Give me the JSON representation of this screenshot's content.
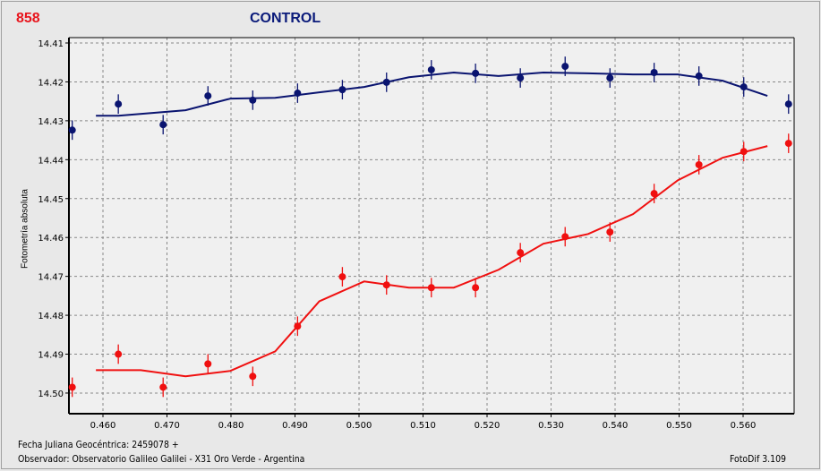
{
  "header": {
    "id_label": "858",
    "title": "CONTROL"
  },
  "footer": {
    "date_label": "Fecha Juliana Geocéntrica: 2459078 +",
    "observer": "Observador: Observatorio Galileo Galilei - X31 Oro Verde - Argentina",
    "software": "FotoDif 3.109"
  },
  "chart_data": {
    "type": "scatter",
    "title": "CONTROL",
    "xlabel": "Fecha Juliana Geocéntrica: 2459078 +",
    "ylabel": "Fotometría absoluta",
    "xlim": [
      0.4547,
      0.568
    ],
    "ylim": [
      14.41,
      14.505
    ],
    "y_inverted": true,
    "grid": true,
    "xticks": [
      "0.460",
      "0.470",
      "0.480",
      "0.490",
      "0.500",
      "0.510",
      "0.520",
      "0.530",
      "0.540",
      "0.550",
      "0.560"
    ],
    "yticks": [
      "14.41",
      "14.42",
      "14.43",
      "14.44",
      "14.45",
      "14.46",
      "14.47",
      "14.48",
      "14.49",
      "14.50"
    ],
    "error": 0.0025,
    "series": [
      {
        "color": "#0a1470",
        "x": [
          0.4552,
          0.4624,
          0.4694,
          0.4764,
          0.4834,
          0.4904,
          0.4974,
          0.5043,
          0.5113,
          0.5182,
          0.5252,
          0.5322,
          0.5392,
          0.5461,
          0.5531,
          0.5601,
          0.5671
        ],
        "y": [
          14.4324,
          14.4257,
          14.431,
          14.4236,
          14.4247,
          14.4229,
          14.422,
          14.4201,
          14.4169,
          14.4178,
          14.419,
          14.416,
          14.419,
          14.4176,
          14.4185,
          14.4213,
          14.4257
        ],
        "fit_x": [
          0.4589,
          0.4624,
          0.4729,
          0.4799,
          0.4869,
          0.4938,
          0.5008,
          0.5078,
          0.5148,
          0.5218,
          0.5288,
          0.5358,
          0.5428,
          0.5498,
          0.5568,
          0.5638
        ],
        "fit_y": [
          14.4287,
          14.4287,
          14.4273,
          14.4243,
          14.4241,
          14.4227,
          14.4213,
          14.4188,
          14.4176,
          14.4185,
          14.4176,
          14.4178,
          14.4181,
          14.4181,
          14.4197,
          14.4236
        ]
      },
      {
        "color": "#f01010",
        "x": [
          0.4552,
          0.4624,
          0.4694,
          0.4764,
          0.4834,
          0.4904,
          0.4974,
          0.5043,
          0.5113,
          0.5182,
          0.5252,
          0.5322,
          0.5392,
          0.5461,
          0.5531,
          0.5601,
          0.5671
        ],
        "y": [
          14.4985,
          14.49,
          14.4985,
          14.4925,
          14.4957,
          14.4828,
          14.4701,
          14.4722,
          14.4729,
          14.4729,
          14.4639,
          14.4598,
          14.4586,
          14.4487,
          14.4413,
          14.4379,
          14.4358
        ],
        "fit_x": [
          0.4589,
          0.4659,
          0.4729,
          0.4799,
          0.4869,
          0.4938,
          0.5008,
          0.5078,
          0.5148,
          0.5218,
          0.5288,
          0.5358,
          0.5428,
          0.5498,
          0.5568,
          0.5638
        ],
        "fit_y": [
          14.4941,
          14.4941,
          14.4957,
          14.4943,
          14.4893,
          14.4764,
          14.4713,
          14.4729,
          14.4729,
          14.4683,
          14.4616,
          14.4591,
          14.454,
          14.4453,
          14.4395,
          14.4365
        ]
      }
    ]
  }
}
